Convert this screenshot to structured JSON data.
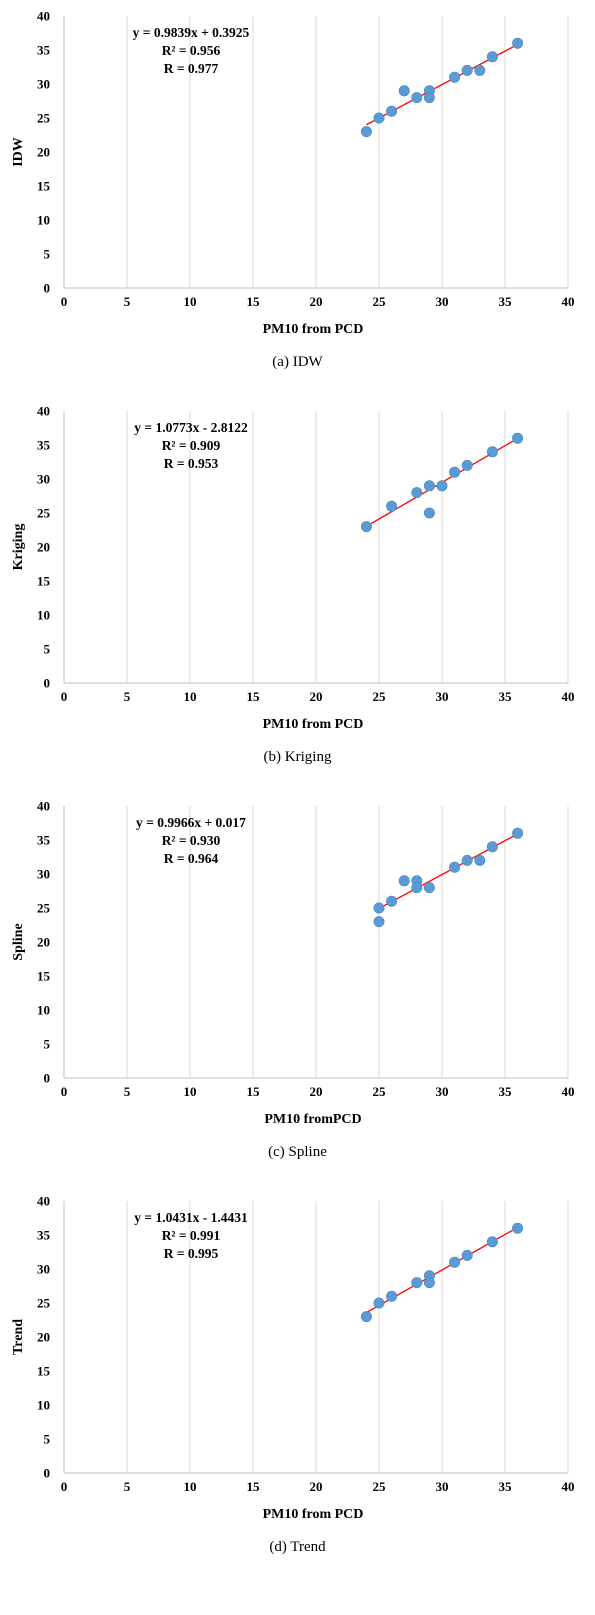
{
  "chart_data": [
    {
      "type": "scatter",
      "caption": "(a) IDW",
      "xlabel": "PM10 from PCD",
      "ylabel": "IDW",
      "xlim": [
        0,
        40
      ],
      "ylim": [
        0,
        40
      ],
      "xticks": [
        "0",
        "5",
        "10",
        "15",
        "20",
        "25",
        "30",
        "35",
        "40"
      ],
      "yticks": [
        "0",
        "5",
        "10",
        "15",
        "20",
        "25",
        "30",
        "35",
        "40"
      ],
      "grid": "vertical",
      "annotation": [
        "y = 0.9839x + 0.3925",
        "R² = 0.956",
        "R = 0.977"
      ],
      "trendline": {
        "slope": 0.9839,
        "intercept": 0.3925,
        "x": [
          24,
          36
        ]
      },
      "points": [
        [
          24,
          23
        ],
        [
          25,
          25
        ],
        [
          26,
          26
        ],
        [
          27,
          29
        ],
        [
          28,
          28
        ],
        [
          29,
          29
        ],
        [
          29,
          28
        ],
        [
          31,
          31
        ],
        [
          32,
          32
        ],
        [
          33,
          32
        ],
        [
          34,
          34
        ],
        [
          36,
          36
        ]
      ],
      "colors": {
        "points": "#5b9bd5",
        "trendline": "#ff0000",
        "grid": "#d9d9d9"
      }
    },
    {
      "type": "scatter",
      "caption": "(b) Kriging",
      "xlabel": "PM10 from  PCD",
      "ylabel": "Kriging",
      "xlim": [
        0,
        40
      ],
      "ylim": [
        0,
        40
      ],
      "xticks": [
        "0",
        "5",
        "10",
        "15",
        "20",
        "25",
        "30",
        "35",
        "40"
      ],
      "yticks": [
        "0",
        "5",
        "10",
        "15",
        "20",
        "25",
        "30",
        "35",
        "40"
      ],
      "grid": "vertical",
      "annotation": [
        "y = 1.0773x - 2.8122",
        "R² = 0.909",
        "R = 0.953"
      ],
      "trendline": {
        "slope": 1.0773,
        "intercept": -2.8122,
        "x": [
          24,
          36
        ]
      },
      "points": [
        [
          24,
          23
        ],
        [
          26,
          26
        ],
        [
          28,
          28
        ],
        [
          29,
          29
        ],
        [
          29,
          25
        ],
        [
          30,
          29
        ],
        [
          31,
          31
        ],
        [
          32,
          32
        ],
        [
          34,
          34
        ],
        [
          36,
          36
        ]
      ],
      "colors": {
        "points": "#5b9bd5",
        "trendline": "#ff0000",
        "grid": "#d9d9d9"
      }
    },
    {
      "type": "scatter",
      "caption": "(c) Spline",
      "xlabel": "PM10 fromPCD",
      "ylabel": "Spline",
      "xlim": [
        0,
        40
      ],
      "ylim": [
        0,
        40
      ],
      "xticks": [
        "0",
        "5",
        "10",
        "15",
        "20",
        "25",
        "30",
        "35",
        "40"
      ],
      "yticks": [
        "0",
        "5",
        "10",
        "15",
        "20",
        "25",
        "30",
        "35",
        "40"
      ],
      "grid": "vertical",
      "annotation": [
        "y = 0.9966x + 0.017",
        "R² = 0.930",
        "R = 0.964"
      ],
      "trendline": {
        "slope": 0.9966,
        "intercept": 0.017,
        "x": [
          25,
          36
        ]
      },
      "points": [
        [
          25,
          25
        ],
        [
          25,
          23
        ],
        [
          26,
          26
        ],
        [
          27,
          29
        ],
        [
          28,
          29
        ],
        [
          28,
          28
        ],
        [
          29,
          28
        ],
        [
          31,
          31
        ],
        [
          32,
          32
        ],
        [
          33,
          32
        ],
        [
          34,
          34
        ],
        [
          36,
          36
        ]
      ],
      "colors": {
        "points": "#5b9bd5",
        "trendline": "#ff0000",
        "grid": "#d9d9d9"
      }
    },
    {
      "type": "scatter",
      "caption": "(d) Trend",
      "xlabel": "PM10 from  PCD",
      "ylabel": "Trend",
      "xlim": [
        0,
        40
      ],
      "ylim": [
        0,
        40
      ],
      "xticks": [
        "0",
        "5",
        "10",
        "15",
        "20",
        "25",
        "30",
        "35",
        "40"
      ],
      "yticks": [
        "0",
        "5",
        "10",
        "15",
        "20",
        "25",
        "30",
        "35",
        "40"
      ],
      "grid": "vertical",
      "annotation": [
        "y = 1.0431x - 1.4431",
        "R² = 0.991",
        "R = 0.995"
      ],
      "trendline": {
        "slope": 1.0431,
        "intercept": -1.4431,
        "x": [
          24,
          36
        ]
      },
      "points": [
        [
          24,
          23
        ],
        [
          25,
          25
        ],
        [
          26,
          26
        ],
        [
          28,
          28
        ],
        [
          29,
          29
        ],
        [
          29,
          28
        ],
        [
          31,
          31
        ],
        [
          32,
          32
        ],
        [
          34,
          34
        ],
        [
          36,
          36
        ]
      ],
      "colors": {
        "points": "#5b9bd5",
        "trendline": "#ff0000",
        "grid": "#d9d9d9"
      }
    }
  ]
}
